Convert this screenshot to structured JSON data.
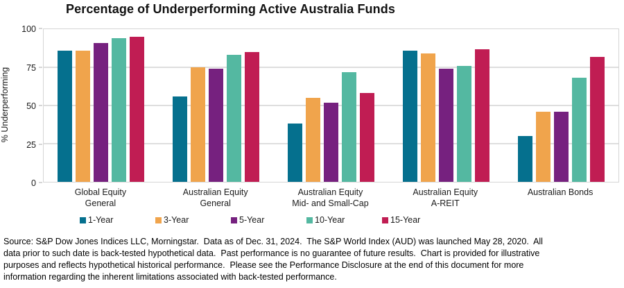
{
  "chart_data": {
    "type": "bar",
    "title": "Percentage of Underperforming Active Australia Funds",
    "ylabel": "% Underperforming",
    "xlabel": "",
    "ylim": [
      0,
      100
    ],
    "yticks": [
      0,
      25,
      50,
      75,
      100
    ],
    "grid": true,
    "legend_position": "bottom",
    "categories": [
      {
        "label_lines": [
          "Global Equity",
          "General"
        ]
      },
      {
        "label_lines": [
          "Australian Equity",
          "General"
        ]
      },
      {
        "label_lines": [
          "Australian Equity",
          "Mid- and Small-Cap"
        ]
      },
      {
        "label_lines": [
          "Australian Equity",
          "A-REIT"
        ]
      },
      {
        "label_lines": [
          "Australian Bonds"
        ]
      }
    ],
    "series": [
      {
        "name": "1-Year",
        "color": "#05708E",
        "values": [
          86,
          56,
          38,
          86,
          30
        ]
      },
      {
        "name": "3-Year",
        "color": "#F0A44C",
        "values": [
          86,
          75,
          55,
          84,
          46
        ]
      },
      {
        "name": "5-Year",
        "color": "#76217F",
        "values": [
          91,
          74,
          52,
          74,
          46
        ]
      },
      {
        "name": "10-Year",
        "color": "#54B8A1",
        "values": [
          94,
          83,
          72,
          76,
          68
        ]
      },
      {
        "name": "15-Year",
        "color": "#C01D53",
        "values": [
          95,
          85,
          58,
          87,
          82
        ]
      }
    ],
    "colors": {
      "gridline": "#DEDEDE",
      "axis_border": "#D6D6D6",
      "text": "#000000"
    }
  },
  "footer": {
    "lines": [
      "Source: S&P Dow Jones Indices LLC, Morningstar.  Data as of Dec. 31, 2024.  The S&P World Index (AUD) was launched May 28, 2020.  All",
      "data prior to such date is back-tested hypothetical data.  Past performance is no guarantee of future results.  Chart is provided for illustrative",
      "purposes and reflects hypothetical historical performance.  Please see the Performance Disclosure at the end of this document for more",
      "information regarding the inherent limitations associated with back-tested performance."
    ]
  }
}
